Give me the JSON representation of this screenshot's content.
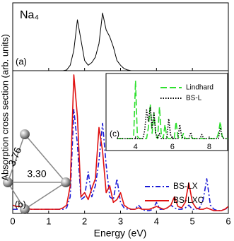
{
  "chart_data": [
    {
      "type": "line",
      "title": "Na₄",
      "label": "(a)",
      "x": [
        0,
        0.1,
        0.2,
        0.3,
        0.4,
        0.5,
        0.6,
        0.7,
        0.8,
        0.9,
        1.0,
        1.1,
        1.2,
        1.3,
        1.4,
        1.5,
        1.6,
        1.7,
        1.8,
        1.9,
        2.0,
        2.1,
        2.2,
        2.3,
        2.4,
        2.5,
        2.6,
        2.7,
        2.8,
        2.9,
        3.0,
        3.1,
        3.2,
        3.3,
        3.4,
        3.5,
        3.6,
        3.7,
        3.8,
        3.9,
        4.0,
        4.1,
        4.2,
        4.3,
        4.4,
        4.5,
        4.6,
        4.7,
        4.8,
        4.9,
        5.0,
        5.1,
        5.2,
        5.3,
        5.4,
        5.5,
        5.6,
        5.7,
        5.8,
        5.9,
        6.0
      ],
      "series": [
        {
          "color": "#000000",
          "style": "solid",
          "values": [
            0,
            0,
            0,
            0,
            0,
            0,
            0,
            0,
            0,
            0,
            0,
            0,
            0,
            0,
            0,
            1,
            8,
            30,
            75,
            45,
            15,
            8,
            12,
            20,
            40,
            85,
            60,
            50,
            35,
            15,
            8,
            3,
            1,
            0,
            0,
            0,
            0,
            0,
            0,
            0,
            0,
            0,
            0,
            0,
            0,
            0,
            0,
            0,
            0,
            0,
            0,
            0,
            0,
            0,
            0,
            0,
            0,
            0,
            0,
            0,
            0
          ]
        }
      ],
      "xlim": [
        0,
        6
      ],
      "ylim": [
        0,
        100
      ],
      "xticks": [
        0,
        1,
        2,
        3,
        4,
        5,
        6
      ]
    },
    {
      "type": "line",
      "label": "(b)",
      "xlabel": "Energy (eV)",
      "ylabel": "Absorption cross section (arb. units)",
      "legend": "lower right",
      "annotations": [
        "3.76",
        "3.30"
      ],
      "x": [
        0,
        0.1,
        0.2,
        0.3,
        0.4,
        0.5,
        0.6,
        0.7,
        0.8,
        0.9,
        1.0,
        1.1,
        1.2,
        1.3,
        1.4,
        1.5,
        1.6,
        1.7,
        1.8,
        1.9,
        2.0,
        2.1,
        2.2,
        2.3,
        2.4,
        2.5,
        2.6,
        2.7,
        2.8,
        2.9,
        3.0,
        3.1,
        3.2,
        3.3,
        3.4,
        3.5,
        3.6,
        3.7,
        3.8,
        3.9,
        4.0,
        4.1,
        4.2,
        4.3,
        4.4,
        4.5,
        4.6,
        4.7,
        4.8,
        4.9,
        5.0,
        5.1,
        5.2,
        5.3,
        5.4,
        5.5,
        5.6,
        5.7,
        5.8,
        5.9,
        6.0
      ],
      "series": [
        {
          "name": "BS-LX",
          "color": "#1a1ad6",
          "style": "dashdot",
          "values": [
            3,
            3,
            3,
            3,
            3,
            3,
            3,
            3,
            3,
            3,
            3,
            3,
            3,
            3,
            3,
            4,
            12,
            75,
            50,
            10,
            12,
            30,
            12,
            20,
            38,
            65,
            35,
            12,
            10,
            25,
            8,
            4,
            3,
            3,
            3,
            6,
            3,
            2,
            2,
            3,
            8,
            3,
            3,
            4,
            6,
            4,
            3,
            3,
            4,
            6,
            3,
            3,
            4,
            10,
            25,
            6,
            3,
            2,
            2,
            3,
            4
          ]
        },
        {
          "name": "BS-LXC",
          "color": "#e01010",
          "style": "solid",
          "values": [
            6,
            5,
            5,
            4,
            4,
            3,
            3,
            3,
            3,
            3,
            3,
            3,
            3,
            3,
            4,
            6,
            20,
            100,
            70,
            12,
            15,
            10,
            18,
            25,
            62,
            45,
            15,
            20,
            8,
            10,
            15,
            6,
            4,
            3,
            3,
            4,
            3,
            3,
            3,
            4,
            5,
            4,
            3,
            4,
            6,
            12,
            5,
            4,
            8,
            22,
            8,
            4,
            3,
            3,
            4,
            3,
            2,
            2,
            2,
            3,
            5
          ]
        }
      ],
      "xlim": [
        0,
        6
      ],
      "ylim": [
        0,
        103
      ],
      "xticks": [
        0,
        1,
        2,
        3,
        4,
        5,
        6
      ]
    },
    {
      "type": "line",
      "label": "(c)",
      "legend": "upper right",
      "x": [
        3.0,
        3.1,
        3.2,
        3.3,
        3.4,
        3.5,
        3.6,
        3.7,
        3.8,
        3.9,
        4.0,
        4.1,
        4.2,
        4.3,
        4.4,
        4.5,
        4.6,
        4.7,
        4.8,
        4.9,
        5.0,
        5.1,
        5.2,
        5.3,
        5.4,
        5.5,
        5.6,
        5.7,
        5.8,
        5.9,
        6.0,
        6.1,
        6.2,
        6.3,
        6.4,
        6.5,
        6.6,
        6.7,
        6.8,
        6.9,
        7.0,
        7.1,
        7.2,
        7.3,
        7.4,
        7.5,
        7.6,
        7.7,
        7.8,
        7.9,
        8.0,
        8.1,
        8.2,
        8.3,
        8.4,
        8.5,
        8.6,
        8.7,
        8.8,
        8.9,
        9.0
      ],
      "series": [
        {
          "name": "Lindhard",
          "color": "#2ee02e",
          "style": "dashed",
          "values": [
            1,
            1,
            1,
            1,
            1,
            1,
            1,
            1,
            1,
            5,
            100,
            5,
            1,
            1,
            1,
            1,
            1,
            20,
            60,
            10,
            45,
            5,
            1,
            55,
            8,
            1,
            25,
            3,
            1,
            1,
            1,
            1,
            30,
            4,
            1,
            1,
            10,
            1,
            1,
            1,
            5,
            1,
            1,
            1,
            1,
            1,
            1,
            1,
            1,
            1,
            1,
            1,
            1,
            1,
            1,
            10,
            30,
            5,
            1,
            1,
            1
          ]
        },
        {
          "name": "BS-L",
          "color": "#000000",
          "style": "dotted",
          "values": [
            1,
            1,
            1,
            1,
            1,
            1,
            1,
            1,
            1,
            1,
            1,
            1,
            1,
            1,
            1,
            15,
            50,
            30,
            55,
            20,
            45,
            10,
            1,
            10,
            1,
            1,
            1,
            1,
            35,
            8,
            1,
            1,
            1,
            1,
            25,
            5,
            1,
            1,
            1,
            1,
            12,
            1,
            1,
            1,
            1,
            1,
            8,
            1,
            1,
            1,
            1,
            1,
            1,
            1,
            1,
            1,
            20,
            5,
            1,
            1,
            1
          ]
        }
      ],
      "xlim": [
        2.4,
        9.0
      ],
      "ylim": [
        0,
        105
      ],
      "xticks": [
        4,
        6,
        8
      ]
    }
  ]
}
